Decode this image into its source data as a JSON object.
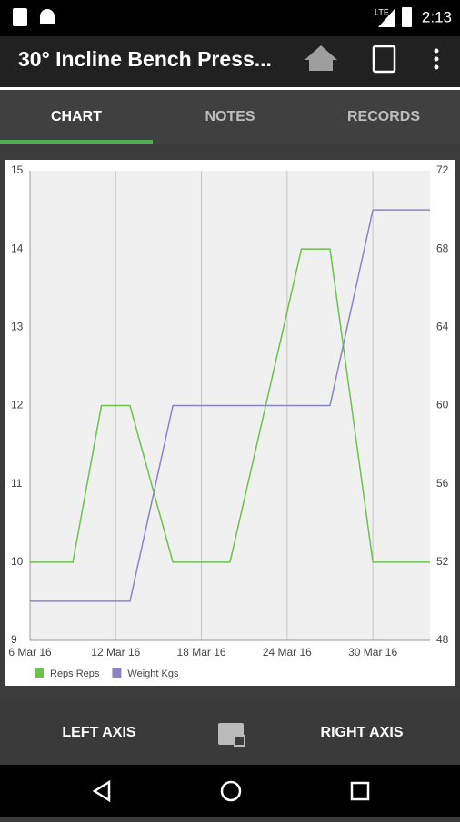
{
  "status_bar": {
    "time": "2:13",
    "network": "LTE"
  },
  "toolbar": {
    "title": "30° Incline Bench Press..."
  },
  "tabs": [
    "CHART",
    "NOTES",
    "RECORDS"
  ],
  "chart_data": {
    "type": "line",
    "x": [
      "2016-03-06",
      "2016-03-09",
      "2016-03-11",
      "2016-03-13",
      "2016-03-16",
      "2016-03-20",
      "2016-03-25",
      "2016-03-27",
      "2016-03-30",
      "2016-04-03"
    ],
    "xlim": [
      "2016-03-06",
      "2016-04-03"
    ],
    "xticks": [
      {
        "value": "2016-03-06",
        "label": "6 Mar 16"
      },
      {
        "value": "2016-03-12",
        "label": "12 Mar 16"
      },
      {
        "value": "2016-03-18",
        "label": "18 Mar 16"
      },
      {
        "value": "2016-03-24",
        "label": "24 Mar 16"
      },
      {
        "value": "2016-03-30",
        "label": "30 Mar 16"
      }
    ],
    "ylim": [
      9,
      15
    ],
    "yticks": [
      9,
      10,
      11,
      12,
      13,
      14,
      15
    ],
    "y2lim": [
      48,
      72
    ],
    "y2ticks": [
      48,
      52,
      56,
      60,
      64,
      68,
      72
    ],
    "grid": "x",
    "series": [
      {
        "name": "Reps Reps",
        "color": "#6cc24a",
        "values": [
          10,
          10,
          12,
          12,
          10,
          10,
          14,
          14,
          10,
          10
        ]
      },
      {
        "name": "Weight Kgs",
        "color": "#8a84c6",
        "axis": "y2",
        "values": [
          50,
          50,
          50,
          50,
          60,
          60,
          60,
          60,
          70,
          70
        ]
      }
    ]
  },
  "bottom_bar": {
    "left": "LEFT AXIS",
    "right": "RIGHT AXIS"
  }
}
